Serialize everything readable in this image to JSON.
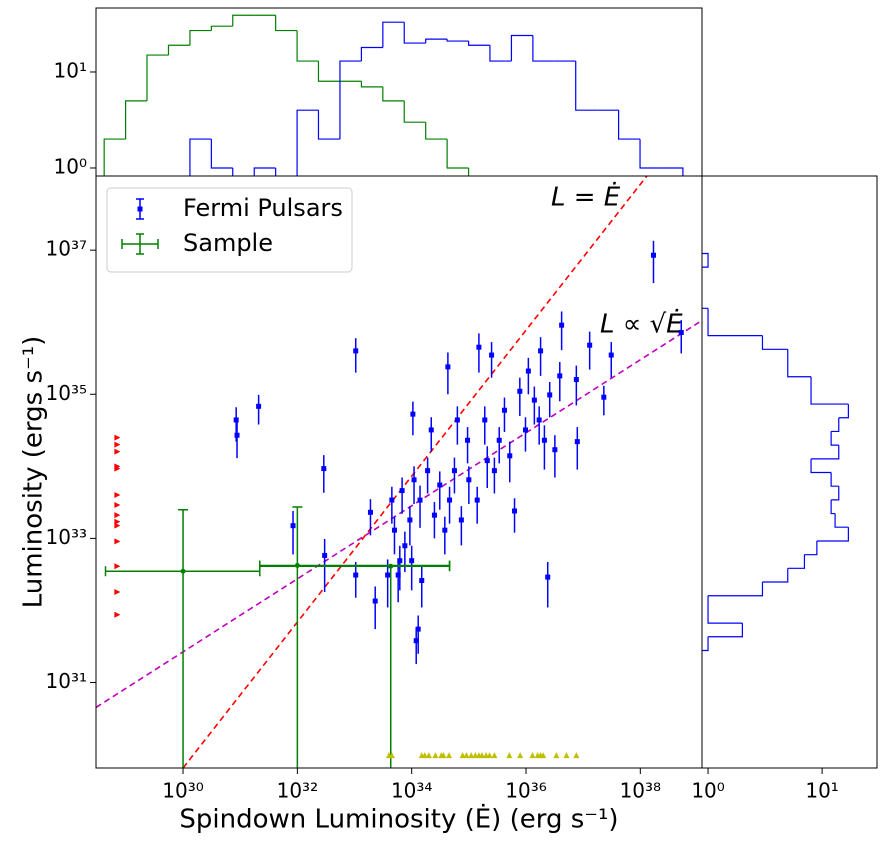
{
  "chart_data": [
    {
      "type": "histogram",
      "orientation": "vertical",
      "bins": [
        4.17e+28,
        9.89e+28,
        2.34e+29,
        5.56e+29,
        1.32e+30,
        3.13e+30,
        7.41e+30,
        1.76e+31,
        4.17e+31,
        9.89e+31,
        2.34e+32,
        5.56e+32,
        1.32e+33,
        3.13e+33,
        7.41e+33,
        1.76e+34,
        4.17e+34,
        9.89e+34,
        2.34e+35,
        5.56e+35,
        1.32e+36,
        3.13e+36,
        7.41e+36,
        1.76e+37,
        4.17e+37,
        9.89e+37,
        2.34e+38,
        5.56e+38
      ],
      "series": [
        {
          "color": "#008000",
          "values": [
            2,
            5,
            15,
            19,
            27,
            30,
            39,
            39,
            27,
            13,
            8,
            8,
            7,
            5,
            3,
            2,
            1,
            0,
            0,
            0,
            0,
            0,
            0,
            0,
            0,
            0,
            0
          ]
        },
        {
          "color": "#0000ff",
          "values": [
            0,
            0,
            0,
            0,
            2,
            1,
            0,
            1,
            0,
            4,
            2,
            13,
            18,
            33,
            20,
            22,
            21,
            19,
            13,
            24,
            13,
            13,
            4,
            4,
            2,
            1,
            1
          ]
        }
      ],
      "xscale": "log",
      "xlim": [
        3e+28,
        1.2e+39
      ],
      "yscale": "log",
      "ylim": [
        0.825,
        46.4
      ],
      "yticks": [
        {
          "value": 1,
          "label": "10⁰"
        },
        {
          "value": 10,
          "label": "10¹"
        }
      ]
    },
    {
      "type": "scatter",
      "xlabel": "Spindown Luminosity (Ė) (erg s⁻¹)",
      "ylabel": "Luminosity (ergs s⁻¹)",
      "xscale": "log",
      "xlim": [
        3e+28,
        1.2e+39
      ],
      "xticks": [
        {
          "value": 1e+30,
          "label": "10³⁰"
        },
        {
          "value": 1e+32,
          "label": "10³²"
        },
        {
          "value": 1e+34,
          "label": "10³⁴"
        },
        {
          "value": 1e+36,
          "label": "10³⁶"
        },
        {
          "value": 1e+38,
          "label": "10³⁸"
        }
      ],
      "yscale": "log",
      "ylim": [
        6.5e+29,
        1.07e+38
      ],
      "yticks": [
        {
          "value": 1e+31,
          "label": "10³¹"
        },
        {
          "value": 1e+33,
          "label": "10³³"
        },
        {
          "value": 1e+35,
          "label": "10³⁵"
        },
        {
          "value": 1e+37,
          "label": "10³⁷"
        }
      ],
      "legend": "upper left",
      "series": [
        {
          "name": "Fermi Pulsars",
          "color": "#0000ff",
          "marker": "square",
          "x": [
            8.5e+30,
            8.8e+30,
            2.1e+31,
            8.4e+31,
            2.9e+32,
            3e+32,
            1.05e+33,
            1.05e+33,
            2.3e+33,
            1.9e+33,
            3.8e+33,
            1.05e+34,
            1.3e+34,
            1.2e+34,
            2.2e+34,
            4.3e+34,
            6.3e+34,
            1.5e+35,
            2.5e+35,
            6.3e+35,
            2.4e+36,
            1.8e+36,
            4.2e+36,
            7.6e+36,
            1.3e+37,
            2.3e+37,
            3.1e+37,
            1.7e+38,
            5.2e+38,
            3.2e+36,
            7.9e+36,
            9.8e+35,
            4.2e+35,
            1.4e+36,
            7.8e+35,
            3.4e+35,
            2.1e+35,
            1e+35,
            7.4e+34,
            4.6e+34,
            3.1e+34,
            1.9e+34,
            1.4e+34,
            9.3e+33,
            7.6e+33,
            6.2e+33,
            5e+33,
            1e+34,
            1.5e+34,
            1.1e+34,
            2.5e+34,
            3.8e+34,
            1.4e+35,
            9.5e+34,
            1.9e+35,
            1.7e+36,
            2.6e+36,
            3.9e+36,
            1.1e+36,
            2.1e+36,
            4.5e+33,
            6.8e+33,
            5.8e+33,
            5.6e+34,
            2.8e+35,
            5.2e+35
          ],
          "values": [
            4.4e+34,
            2.7e+34,
            6.8e+34,
            1.5e+33,
            9.3e+33,
            5.8e+32,
            4e+35,
            3.1e+32,
            1.35e+32,
            2.3e+33,
            3.1e+32,
            5.3e+34,
            5.5e+31,
            3.8e+31,
            3.2e+34,
            2.4e+35,
            4.4e+34,
            4.5e+35,
            3.5e+35,
            2.4e+33,
            2.9e+32,
            4e+35,
            9.1e+35,
            1.6e+35,
            4.8e+35,
            9.1e+34,
            3.5e+35,
            8.5e+36,
            7.2e+35,
            1.7e+34,
            2.2e+34,
            3.2e+34,
            6e+34,
            8.3e+34,
            1.1e+35,
            2.3e+34,
            1.2e+34,
            6.5e+33,
            1.8e+33,
            3.4e+33,
            5.5e+33,
            8.7e+33,
            3.4e+33,
            1.8e+33,
            7.9e+32,
            4.9e+32,
            1.3e+33,
            4.9e+32,
            2.6e+32,
            6.5e+33,
            2.1e+33,
            1.3e+33,
            3.4e+33,
            2.3e+34,
            4.4e+34,
            4.4e+34,
            9.8e+34,
            1.8e+35,
            2.1e+35,
            2.3e+34,
            3.4e+33,
            4.6e+33,
            3.1e+32,
            8.7e+33,
            8.7e+33,
            1.4e+34
          ],
          "errors": [
            2.2e+34,
            1.4e+34,
            3e+34,
            9e+32,
            5e+33,
            4e+32,
            2e+35,
            1.6e+32,
            8e+31,
            1.2e+33,
            2e+32,
            2.6e+34,
            3e+31,
            2e+31,
            1.6e+34,
            1.4e+35,
            2.4e+34,
            2.5e+35,
            1.8e+35,
            1.2e+33,
            1.8e+32,
            2.2e+35,
            5e+35,
            9e+34,
            2.6e+35,
            4e+34,
            1.8e+35,
            5e+36,
            3.5e+35,
            1e+34,
            1.3e+34,
            1.6e+34,
            3e+34,
            4.5e+34,
            6e+34,
            1.2e+34,
            7e+33,
            3.5e+33,
            1e+33,
            1.8e+33,
            3e+33,
            4.5e+33,
            2e+33,
            1e+33,
            4.5e+32,
            3e+32,
            7e+32,
            3e+32,
            1.5e+32,
            3.5e+33,
            1.1e+33,
            7e+32,
            1.8e+33,
            1.2e+34,
            2.4e+34,
            2.4e+34,
            5e+34,
            1e+35,
            1.1e+35,
            1.4e+34,
            1.8e+33,
            2.4e+33,
            1.8e+32,
            4.5e+33,
            4.5e+33,
            8e+33
          ]
        },
        {
          "name": "Sample",
          "color": "#008000",
          "marker": "circle",
          "x": [
            1e+30,
            1e+32,
            4.3e+33
          ],
          "values": [
            3.5e+32,
            4.2e+32,
            4.1e+32
          ],
          "xerr_low": [
            9.56e+29,
            7.8e+31,
            4.278e+33
          ],
          "xerr_high": [
            2.1e+31,
            4.59e+34,
            4.17e+34
          ],
          "yerr_low": [
            3.5e+32,
            4.2e+32,
            4.1e+32
          ],
          "yerr_high": [
            2.15e+33,
            2.3e+33,
            0
          ]
        },
        {
          "color": "#ff0000",
          "marker": "triangle-right",
          "x": [
            7.1e+28,
            7.1e+28,
            7.1e+28,
            7.1e+28,
            7.1e+28,
            7.1e+28,
            7.1e+28,
            7.1e+28,
            7.1e+28,
            7.1e+28,
            7.1e+28,
            7.1e+28,
            7.1e+28,
            7.1e+28
          ],
          "values": [
            2.5e+34,
            2e+34,
            1.6e+34,
            1e+34,
            9.3e+33,
            4e+33,
            2.9e+33,
            2.1e+33,
            1.7e+33,
            1.5e+33,
            9.1e+32,
            4.1e+32,
            1.8e+32,
            8.7e+31
          ]
        },
        {
          "color": "#bfbf00",
          "marker": "triangle-up",
          "x": [
            4e+33,
            4.5e+33,
            1.5e+34,
            1.7e+34,
            2e+34,
            2.6e+34,
            3.3e+34,
            3.6e+34,
            4.5e+34,
            7.8e+34,
            9.1e+34,
            1.1e+35,
            1.3e+35,
            1.5e+35,
            1.7e+35,
            2e+35,
            2.3e+35,
            2.8e+35,
            5.1e+35,
            7.9e+35,
            1.3e+36,
            1.6e+36,
            1.8e+36,
            2e+36,
            3.4e+36,
            5.1e+36,
            7.6e+36
          ],
          "values": [
            9.8e+29,
            9.8e+29,
            9.8e+29,
            9.8e+29,
            9.8e+29,
            9.8e+29,
            9.8e+29,
            9.8e+29,
            9.8e+29,
            9.8e+29,
            9.8e+29,
            9.8e+29,
            9.8e+29,
            9.8e+29,
            9.8e+29,
            9.8e+29,
            9.8e+29,
            9.8e+29,
            9.8e+29,
            9.8e+29,
            9.8e+29,
            9.8e+29,
            9.8e+29,
            9.8e+29,
            9.8e+29,
            9.8e+29,
            9.8e+29
          ]
        }
      ],
      "lines": [
        {
          "color": "#ff0000",
          "x": [
            1e+30,
            1.3e+38
          ],
          "values": [
            6.5e+29,
            1.07e+38
          ]
        },
        {
          "color": "#bf00bf",
          "x": [
            3e+28,
            1.07e+39
          ],
          "values": [
            4.5e+30,
            1e+36
          ]
        }
      ],
      "annotations": [
        {
          "text": "L = Ė",
          "color": "#ff0000"
        },
        {
          "text": "L ∝ √Ė",
          "color": "#bf00bf"
        }
      ]
    },
    {
      "type": "histogram",
      "orientation": "horizontal",
      "bins": [
        2.78e+31,
        4.31e+31,
        6.67e+31,
        1.03e+32,
        1.6e+32,
        2.48e+32,
        3.84e+32,
        5.94e+32,
        9.2e+32,
        1.43e+33,
        2.21e+33,
        3.42e+33,
        5.3e+33,
        8.2e+33,
        1.27e+34,
        1.97e+34,
        3.05e+34,
        4.72e+34,
        7.31e+34,
        1.13e+35,
        1.75e+35,
        2.72e+35,
        4.21e+35,
        6.52e+35,
        1.01e+36,
        1.56e+36,
        2.42e+36,
        3.75e+36,
        5.81e+36,
        8.99e+36
      ],
      "series": [
        {
          "color": "#0000ff",
          "values": [
            1,
            2,
            1,
            1,
            3,
            5,
            7,
            9,
            17,
            13,
            12,
            14,
            12,
            8,
            14,
            12,
            14,
            17,
            8,
            8,
            5,
            5,
            3,
            1,
            1,
            0,
            0,
            0,
            1
          ]
        }
      ],
      "xscale": "log",
      "xlim": [
        0.885,
        30.3
      ],
      "xticks": [
        {
          "value": 1,
          "label": "10⁰"
        },
        {
          "value": 10,
          "label": "10¹"
        }
      ],
      "yscale": "log",
      "ylim": [
        6.5e+29,
        1.07e+38
      ]
    }
  ]
}
